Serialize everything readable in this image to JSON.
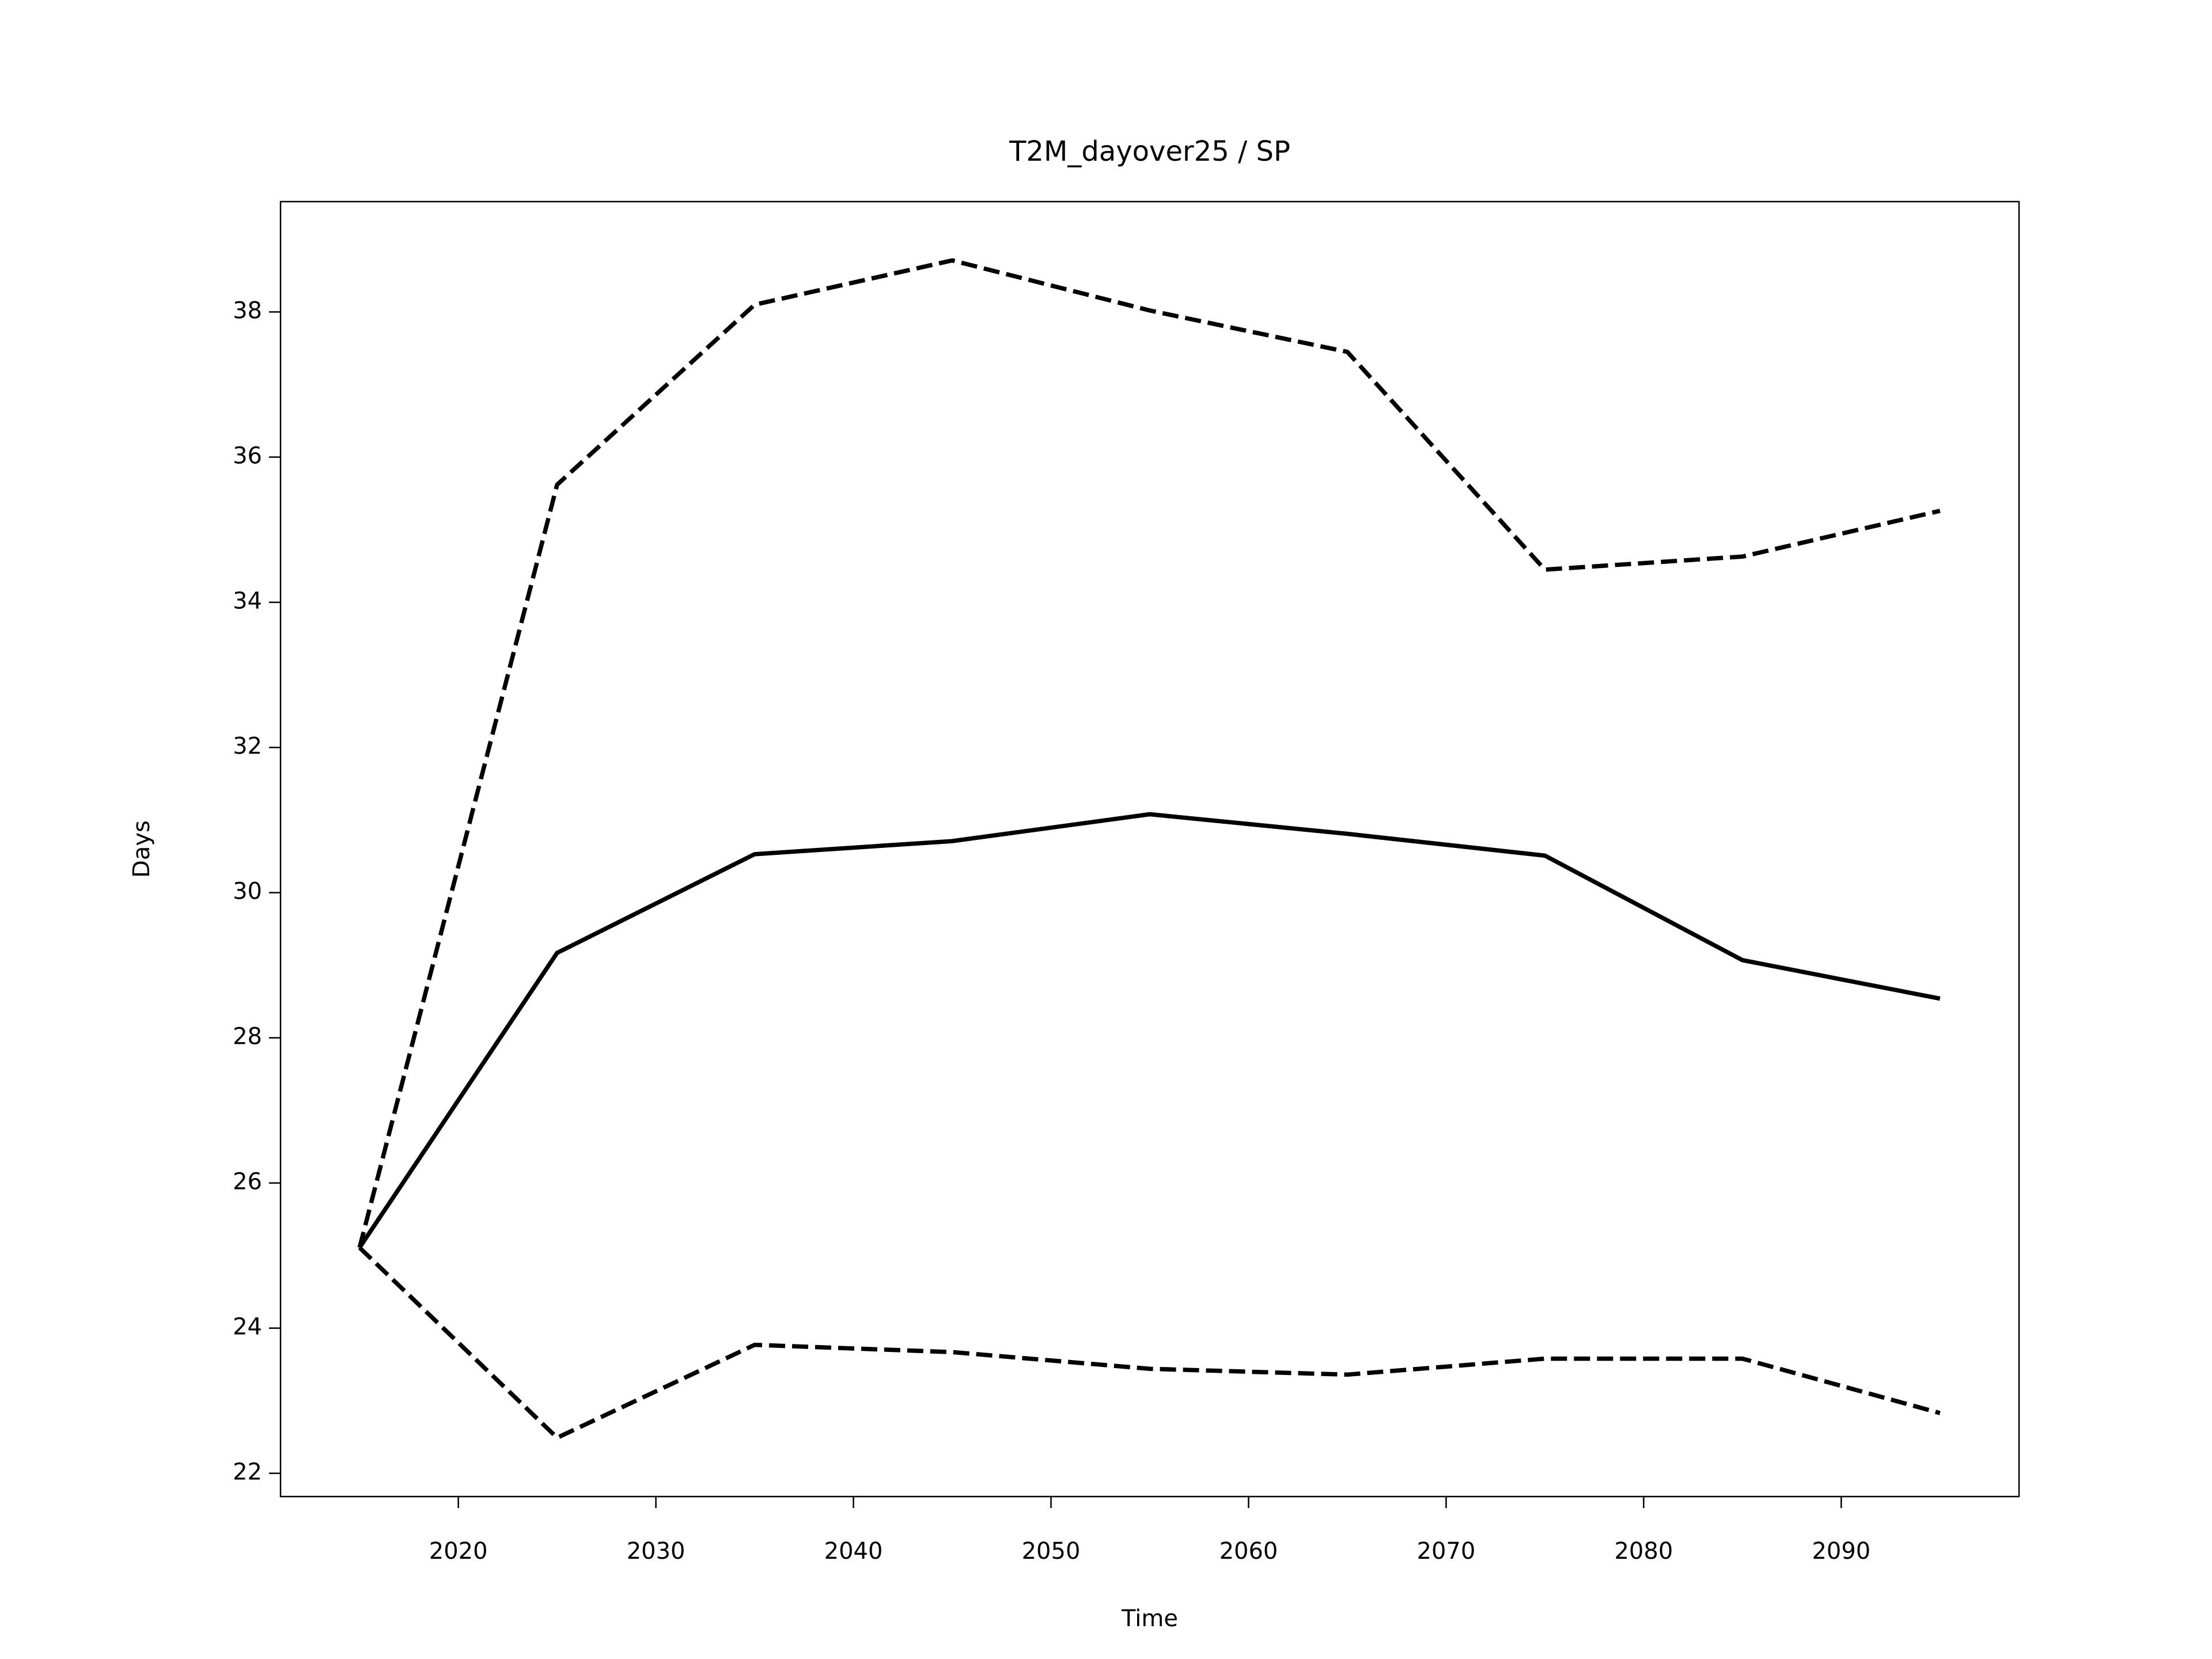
{
  "chart_data": {
    "type": "line",
    "title": "T2M_dayover25 / SP",
    "x_label": "Time",
    "y_label": "Days",
    "x": [
      2015,
      2025,
      2035,
      2045,
      2055,
      2065,
      2075,
      2085,
      2095
    ],
    "series": [
      {
        "color": "#000000",
        "linestyle": "solid",
        "values": [
          25.11,
          29.17,
          30.53,
          30.71,
          31.08,
          30.81,
          30.51,
          29.07,
          28.54
        ]
      },
      {
        "color": "#000000",
        "linestyle": "dashed",
        "values": [
          25.11,
          35.62,
          38.1,
          38.71,
          38.02,
          37.45,
          34.45,
          34.63,
          35.26
        ]
      },
      {
        "color": "#000000",
        "linestyle": "dashed",
        "values": [
          25.11,
          22.49,
          23.77,
          23.67,
          23.44,
          23.36,
          23.58,
          23.58,
          22.83
        ]
      }
    ],
    "xlim": [
      2011,
      2099
    ],
    "xticks": [
      2020,
      2030,
      2040,
      2050,
      2060,
      2070,
      2080,
      2090
    ],
    "ylim": [
      21.68,
      39.52
    ],
    "yticks": [
      22,
      24,
      26,
      28,
      30,
      32,
      34,
      36,
      38
    ],
    "grid": false
  }
}
